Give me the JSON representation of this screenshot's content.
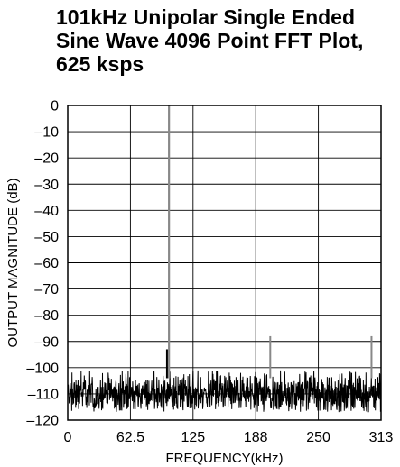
{
  "chart_data": {
    "type": "line",
    "title_lines": [
      "101kHz Unipolar Single Ended",
      "Sine Wave 4096 Point FFT Plot,",
      "625 ksps"
    ],
    "xlabel": "FREQUENCY(kHz)",
    "ylabel": "OUTPUT MAGNITUDE (dB)",
    "xlim": [
      0,
      312.5
    ],
    "ylim": [
      -120,
      0
    ],
    "x_ticks": [
      0,
      62.5,
      125,
      187.5,
      250,
      312.5
    ],
    "x_tick_labels": [
      "0",
      "62.5",
      "125",
      "188",
      "250",
      "313"
    ],
    "y_ticks": [
      0,
      -10,
      -20,
      -30,
      -40,
      -50,
      -60,
      -70,
      -80,
      -90,
      -100,
      -110,
      -120
    ],
    "y_tick_labels": [
      "0",
      "–10",
      "–20",
      "–30",
      "–40",
      "–50",
      "–60",
      "–70",
      "–80",
      "–90",
      "–100",
      "–110",
      "–120"
    ],
    "grid": true,
    "noise_floor_db": -110,
    "noise_spread_db": [
      -117,
      -101
    ],
    "spectral_peaks": [
      {
        "x": 101,
        "y": 0
      },
      {
        "x": 202,
        "y": -88
      },
      {
        "x": 303,
        "y": -88
      },
      {
        "x": 99,
        "y": -93
      }
    ],
    "colors": {
      "trace": "#000000",
      "grid": "#000000",
      "peak": "#888888"
    }
  }
}
